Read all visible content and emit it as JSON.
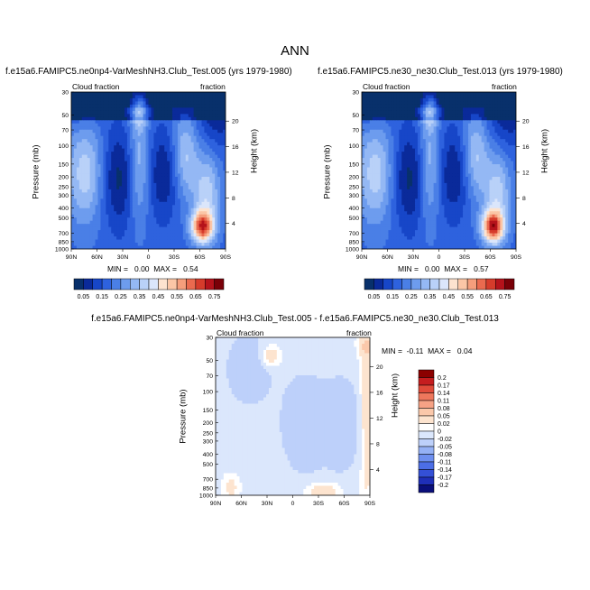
{
  "figure": {
    "title": "ANN"
  },
  "colors": {
    "full": [
      "#08306b",
      "#0a2a9a",
      "#1746c8",
      "#2e62de",
      "#4a7fe6",
      "#6d9cee",
      "#94b8f4",
      "#b9d1f8",
      "#dbe6fb",
      "#fde3cf",
      "#fbc6a6",
      "#f59e7c",
      "#ea6a4f",
      "#d63b2b",
      "#b5121b",
      "#7a0008"
    ],
    "diff": [
      "#0a0f7a",
      "#1f2fb8",
      "#3450d6",
      "#4c6ee6",
      "#6e8fef",
      "#95b1f5",
      "#bdd0fa",
      "#dbe7fc",
      "#ffffff",
      "#fde4cf",
      "#fbc8aa",
      "#f6a285",
      "#ee775c",
      "#e04b3a",
      "#c51d1f",
      "#8b0000"
    ]
  },
  "panels": [
    {
      "title": "f.e15a6.FAMIPC5.ne0np4-VarMeshNH3.Club_Test.005 (yrs 1979-1980)",
      "left_label": "Cloud fraction",
      "right_label": "fraction",
      "min_max": "MIN =   0.00  MAX =   0.54"
    },
    {
      "title": "f.e15a6.FAMIPC5.ne30_ne30.Club_Test.013 (yrs 1979-1980)",
      "left_label": "Cloud fraction",
      "right_label": "fraction",
      "min_max": "MIN =   0.00  MAX =   0.57"
    },
    {
      "title": "f.e15a6.FAMIPC5.ne0np4-VarMeshNH3.Club_Test.005 - f.e15a6.FAMIPC5.ne30_ne30.Club_Test.013",
      "left_label": "Cloud fraction",
      "right_label": "fraction",
      "min_max": "MIN =  -0.11  MAX =   0.04"
    }
  ],
  "axes": {
    "ylabel": "Pressure (mb)",
    "y2label": "Height (km)",
    "pressure_ticks": [
      "30",
      "50",
      "70",
      "100",
      "150",
      "200",
      "250",
      "300",
      "400",
      "500",
      "700",
      "850",
      "1000"
    ],
    "height_ticks": [
      "20",
      "16",
      "12",
      "8",
      "4"
    ],
    "lat_ticks": [
      "90N",
      "60N",
      "30N",
      "0",
      "30S",
      "60S",
      "90S"
    ]
  },
  "colorbars": {
    "full_labels": [
      "0.05",
      "0.15",
      "0.25",
      "0.35",
      "0.45",
      "0.55",
      "0.65",
      "0.75"
    ],
    "diff_labels": [
      "0.2",
      "0.17",
      "0.14",
      "0.11",
      "0.08",
      "0.05",
      "0.02",
      "0",
      "-0.02",
      "-0.05",
      "-0.08",
      "-0.11",
      "-0.14",
      "-0.17",
      "-0.2"
    ]
  },
  "chart_data": [
    {
      "type": "heatmap",
      "title": "f.e15a6.FAMIPC5.ne0np4-VarMeshNH3.Club_Test.005 (yrs 1979-1980)",
      "ylabel": "Pressure (mb)",
      "y2label": "Height (km)",
      "x": [
        "90N",
        "60N",
        "30N",
        "0",
        "30S",
        "60S",
        "90S"
      ],
      "y_pressure_mb": [
        30,
        50,
        70,
        100,
        150,
        200,
        250,
        300,
        400,
        500,
        700,
        850,
        1000
      ],
      "min": 0.0,
      "max": 0.54,
      "contour_levels": [
        0.05,
        0.1,
        0.15,
        0.2,
        0.25,
        0.3,
        0.35,
        0.4,
        0.45,
        0.5,
        0.55,
        0.6,
        0.65,
        0.7,
        0.75
      ]
    },
    {
      "type": "heatmap",
      "title": "f.e15a6.FAMIPC5.ne30_ne30.Club_Test.013 (yrs 1979-1980)",
      "ylabel": "Pressure (mb)",
      "y2label": "Height (km)",
      "x": [
        "90N",
        "60N",
        "30N",
        "0",
        "30S",
        "60S",
        "90S"
      ],
      "y_pressure_mb": [
        30,
        50,
        70,
        100,
        150,
        200,
        250,
        300,
        400,
        500,
        700,
        850,
        1000
      ],
      "min": 0.0,
      "max": 0.57,
      "contour_levels": [
        0.05,
        0.1,
        0.15,
        0.2,
        0.25,
        0.3,
        0.35,
        0.4,
        0.45,
        0.5,
        0.55,
        0.6,
        0.65,
        0.7,
        0.75
      ]
    },
    {
      "type": "heatmap",
      "title": "f.e15a6.FAMIPC5.ne0np4-VarMeshNH3.Club_Test.005 - f.e15a6.FAMIPC5.ne30_ne30.Club_Test.013",
      "ylabel": "Pressure (mb)",
      "y2label": "Height (km)",
      "x": [
        "90N",
        "60N",
        "30N",
        "0",
        "30S",
        "60S",
        "90S"
      ],
      "y_pressure_mb": [
        30,
        50,
        70,
        100,
        150,
        200,
        250,
        300,
        400,
        500,
        700,
        850,
        1000
      ],
      "min": -0.11,
      "max": 0.04,
      "contour_levels": [
        -0.2,
        -0.17,
        -0.14,
        -0.11,
        -0.08,
        -0.05,
        -0.02,
        0,
        0.02,
        0.05,
        0.08,
        0.11,
        0.14,
        0.17,
        0.2
      ]
    }
  ]
}
